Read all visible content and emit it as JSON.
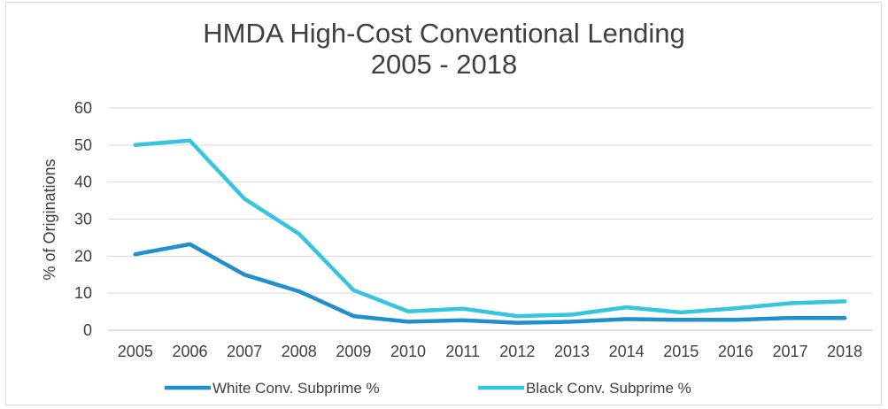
{
  "chart_data": {
    "type": "line",
    "title": "HMDA High-Cost Conventional Lending",
    "subtitle": "2005 - 2018",
    "xlabel": "",
    "ylabel": "% of Originations",
    "x": [
      "2005",
      "2006",
      "2007",
      "2008",
      "2009",
      "2010",
      "2011",
      "2012",
      "2013",
      "2014",
      "2015",
      "2016",
      "2017",
      "2018"
    ],
    "ylim": [
      0,
      60
    ],
    "yticks": [
      0,
      10,
      20,
      30,
      40,
      50,
      60
    ],
    "grid": true,
    "legend": "bottom",
    "series": [
      {
        "name": "White Conv. Subprime %",
        "color": "#1f8fce",
        "values": [
          20.5,
          23.2,
          15.0,
          10.5,
          3.8,
          2.3,
          2.7,
          2.0,
          2.3,
          3.0,
          2.8,
          2.8,
          3.3,
          3.3
        ]
      },
      {
        "name": "Black Conv. Subprime %",
        "color": "#36c5df",
        "values": [
          50.0,
          51.2,
          35.5,
          26.0,
          10.8,
          5.1,
          5.8,
          3.8,
          4.2,
          6.2,
          4.8,
          5.9,
          7.3,
          7.8
        ]
      }
    ]
  }
}
